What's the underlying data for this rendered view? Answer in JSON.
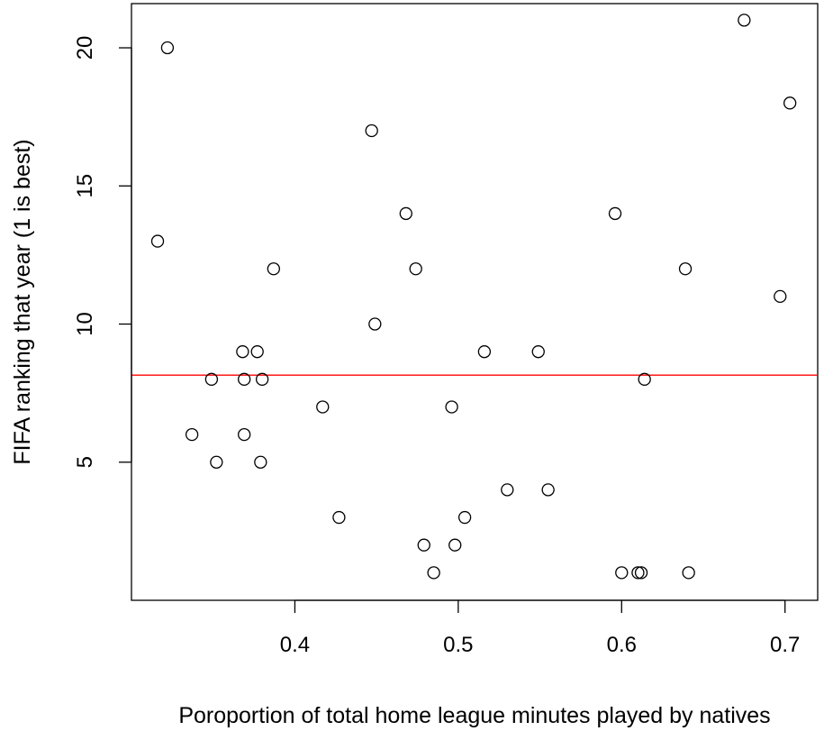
{
  "chart_data": {
    "type": "scatter",
    "xlabel": "Poroportion of total home league minutes played by natives",
    "ylabel": "FIFA ranking that year (1 is best)",
    "xlim": [
      0.3,
      0.72
    ],
    "ylim": [
      0,
      21.6
    ],
    "xticks": [
      0.4,
      0.5,
      0.6,
      0.7
    ],
    "xtick_labels": [
      "0.4",
      "0.5",
      "0.6",
      "0.7"
    ],
    "yticks": [
      5,
      10,
      15,
      20
    ],
    "ytick_labels": [
      "5",
      "10",
      "15",
      "20"
    ],
    "hline": {
      "y": 8.15,
      "color": "#ff0000"
    },
    "marker_color": "#000000",
    "grid": false,
    "points": [
      {
        "x": 0.316,
        "y": 13
      },
      {
        "x": 0.322,
        "y": 20
      },
      {
        "x": 0.337,
        "y": 6
      },
      {
        "x": 0.349,
        "y": 8
      },
      {
        "x": 0.352,
        "y": 5
      },
      {
        "x": 0.368,
        "y": 9
      },
      {
        "x": 0.369,
        "y": 8
      },
      {
        "x": 0.369,
        "y": 6
      },
      {
        "x": 0.377,
        "y": 9
      },
      {
        "x": 0.379,
        "y": 5
      },
      {
        "x": 0.38,
        "y": 8
      },
      {
        "x": 0.387,
        "y": 12
      },
      {
        "x": 0.417,
        "y": 7
      },
      {
        "x": 0.427,
        "y": 3
      },
      {
        "x": 0.447,
        "y": 17
      },
      {
        "x": 0.449,
        "y": 10
      },
      {
        "x": 0.468,
        "y": 14
      },
      {
        "x": 0.474,
        "y": 12
      },
      {
        "x": 0.479,
        "y": 2
      },
      {
        "x": 0.485,
        "y": 1
      },
      {
        "x": 0.496,
        "y": 7
      },
      {
        "x": 0.498,
        "y": 2
      },
      {
        "x": 0.504,
        "y": 3
      },
      {
        "x": 0.516,
        "y": 9
      },
      {
        "x": 0.53,
        "y": 4
      },
      {
        "x": 0.549,
        "y": 9
      },
      {
        "x": 0.555,
        "y": 4
      },
      {
        "x": 0.596,
        "y": 14
      },
      {
        "x": 0.6,
        "y": 1
      },
      {
        "x": 0.61,
        "y": 1
      },
      {
        "x": 0.612,
        "y": 1
      },
      {
        "x": 0.614,
        "y": 8
      },
      {
        "x": 0.639,
        "y": 12
      },
      {
        "x": 0.641,
        "y": 1
      },
      {
        "x": 0.675,
        "y": 21
      },
      {
        "x": 0.697,
        "y": 11
      },
      {
        "x": 0.703,
        "y": 18
      }
    ]
  }
}
